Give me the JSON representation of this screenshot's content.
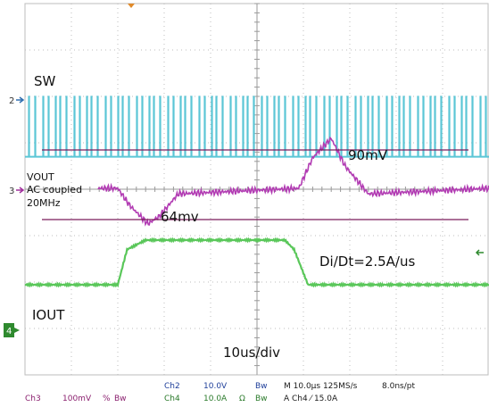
{
  "chart_data": {
    "type": "line",
    "xlabel": "10us/div",
    "x_divisions": 10,
    "y_divisions": 8,
    "series": [
      {
        "name": "SW",
        "channel": "Ch2",
        "color": "#5bc6d6",
        "level_div": 3.3,
        "amplitude_div": 1.3,
        "description": "switch node pulses"
      },
      {
        "name": "VOUT",
        "channel": "Ch3",
        "color": "#b23cb3",
        "x_div": [
          0,
          2.0,
          2.25,
          2.65,
          2.9,
          3.3,
          5.9,
          6.2,
          6.6,
          6.9,
          7.4,
          10
        ],
        "y_mv": [
          0,
          0,
          -30,
          -64,
          -50,
          -10,
          0,
          55,
          90,
          40,
          -10,
          0
        ]
      },
      {
        "name": "IOUT",
        "channel": "Ch4",
        "color": "#5ac75a",
        "x_div": [
          0,
          2.0,
          2.2,
          2.6,
          5.6,
          5.8,
          6.1,
          10
        ],
        "y_a": [
          0,
          0,
          15,
          19,
          19,
          15,
          0,
          0
        ]
      }
    ],
    "annotations": {
      "upper_marker": "90mV",
      "lower_marker": "64mv",
      "didt": "Di/Dt=2.5A/us"
    }
  },
  "labels": {
    "sw": "SW",
    "vout": "VOUT",
    "ac_coupled": "AC coupled",
    "bw": "20MHz",
    "iout": "IOUT"
  },
  "ch_markers": {
    "ch2": "2",
    "ch3": "3",
    "ch4": "4"
  },
  "colors": {
    "grid": "#bdbdbd",
    "cyan": "#5bc6d6",
    "magenta": "#b23cb3",
    "green": "#5ac75a",
    "marker_line": "#7a1a5a",
    "ch4_tab": "#2f8a2f"
  },
  "footer": {
    "ch3": "Ch3",
    "ch3_scale": "100mV",
    "ch3_sym": "%",
    "ch3_bw": "Bw",
    "ch2": "Ch2",
    "ch2_scale": "10.0V",
    "ch2_bw": "Bw",
    "ch4": "Ch4",
    "ch4_scale": "10.0A",
    "ch4_sym": "Ω",
    "ch4_bw": "Bw",
    "timebase": "M 10.0µs 125MS/s",
    "per_pt": "8.0ns/pt",
    "trigger": "A Ch4 ⁄ 15.0A"
  }
}
